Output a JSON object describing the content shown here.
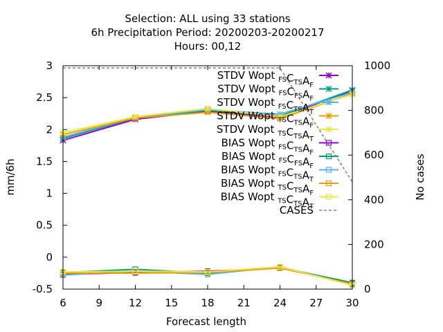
{
  "chart_data": {
    "type": "line",
    "title_lines": [
      "Selection: ALL using    33 stations",
      "6h Precipitation   Period: 20200203-20200217",
      "Hours:  00,12"
    ],
    "xlabel": "Forecast length",
    "ylabel": "mm/6h",
    "y2label": "No cases",
    "xlim": [
      6,
      30
    ],
    "ylim": [
      -0.5,
      3
    ],
    "y2lim": [
      0,
      1000
    ],
    "xticks": [
      "6",
      "9",
      "12",
      "15",
      "18",
      "21",
      "24",
      "27",
      "30"
    ],
    "yticks": [
      "-0.5",
      "0",
      "0.5",
      "1",
      "1.5",
      "2",
      "2.5",
      "3"
    ],
    "y2ticks": [
      "0",
      "200",
      "400",
      "600",
      "800",
      "1000"
    ],
    "grid": "none",
    "legend_position": "top-right",
    "x": [
      6,
      12,
      18,
      24,
      30
    ],
    "series": [
      {
        "name": "STDV Wopt FS CTS AF",
        "color": "#9400d3",
        "marker": "x-star",
        "values": [
          1.83,
          2.16,
          2.29,
          2.19,
          2.61
        ]
      },
      {
        "name": "STDV Wopt FS CFS AF",
        "color": "#009e73",
        "marker": "x-star",
        "values": [
          1.86,
          2.18,
          2.3,
          2.21,
          2.62
        ]
      },
      {
        "name": "STDV Wopt FS CTS AT",
        "color": "#56b4e9",
        "marker": "x-star",
        "values": [
          1.88,
          2.19,
          2.31,
          2.24,
          2.58
        ]
      },
      {
        "name": "STDV Wopt TS CTS AF",
        "color": "#e69f00",
        "marker": "x-star",
        "values": [
          1.92,
          2.18,
          2.27,
          2.17,
          2.56
        ]
      },
      {
        "name": "STDV Wopt TS CTS AT",
        "color": "#f0e442",
        "marker": "x-star",
        "values": [
          1.95,
          2.2,
          2.33,
          2.2,
          2.55
        ]
      },
      {
        "name": "BIAS Wopt FS CTS AF",
        "color": "#9400d3",
        "marker": "square",
        "values": [
          -0.27,
          -0.24,
          -0.22,
          -0.17,
          -0.41
        ]
      },
      {
        "name": "BIAS Wopt FS CFS AF",
        "color": "#009e73",
        "marker": "square",
        "values": [
          -0.24,
          -0.19,
          -0.25,
          -0.16,
          -0.4
        ]
      },
      {
        "name": "BIAS Wopt FS CTS AT",
        "color": "#56b4e9",
        "marker": "square",
        "values": [
          -0.28,
          -0.22,
          -0.27,
          -0.15,
          -0.43
        ]
      },
      {
        "name": "BIAS Wopt TS CTS AF",
        "color": "#e69f00",
        "marker": "square",
        "values": [
          -0.25,
          -0.25,
          -0.24,
          -0.17,
          -0.42
        ]
      },
      {
        "name": "BIAS Wopt TS CTS AT",
        "color": "#f0e442",
        "marker": "square",
        "values": [
          -0.23,
          -0.22,
          -0.23,
          -0.15,
          -0.44
        ]
      },
      {
        "name": "CASES",
        "color": "#808080",
        "marker": "none",
        "dashed": true,
        "axis": "y2",
        "values": [
          990,
          990,
          990,
          990,
          480
        ]
      }
    ],
    "legend": [
      {
        "prefix": "STDV Wopt ",
        "parts": [
          [
            "",
            ""
          ],
          [
            "",
            "FS"
          ],
          [
            "C",
            "TS"
          ],
          [
            "A",
            "F"
          ]
        ]
      },
      {
        "prefix": "STDV Wopt ",
        "parts": [
          [
            "",
            ""
          ],
          [
            "",
            "FS"
          ],
          [
            "C",
            "FS"
          ],
          [
            "A",
            "F"
          ]
        ]
      },
      {
        "prefix": "STDV Wopt ",
        "parts": [
          [
            "",
            ""
          ],
          [
            "",
            "FS"
          ],
          [
            "C",
            "TS"
          ],
          [
            "A",
            "T"
          ]
        ]
      },
      {
        "prefix": "STDV Wopt ",
        "parts": [
          [
            "",
            ""
          ],
          [
            "",
            "TS"
          ],
          [
            "C",
            "TS"
          ],
          [
            "A",
            "F"
          ]
        ]
      },
      {
        "prefix": "STDV Wopt ",
        "parts": [
          [
            "",
            ""
          ],
          [
            "",
            "TS"
          ],
          [
            "C",
            "TS"
          ],
          [
            "A",
            "T"
          ]
        ]
      },
      {
        "prefix": "BIAS Wopt ",
        "parts": [
          [
            "",
            ""
          ],
          [
            "",
            "FS"
          ],
          [
            "C",
            "TS"
          ],
          [
            "A",
            "F"
          ]
        ]
      },
      {
        "prefix": "BIAS Wopt ",
        "parts": [
          [
            "",
            ""
          ],
          [
            "",
            "FS"
          ],
          [
            "C",
            "FS"
          ],
          [
            "A",
            "F"
          ]
        ]
      },
      {
        "prefix": "BIAS Wopt ",
        "parts": [
          [
            "",
            ""
          ],
          [
            "",
            "FS"
          ],
          [
            "C",
            "TS"
          ],
          [
            "A",
            "T"
          ]
        ]
      },
      {
        "prefix": "BIAS Wopt ",
        "parts": [
          [
            "",
            ""
          ],
          [
            "",
            "TS"
          ],
          [
            "C",
            "TS"
          ],
          [
            "A",
            "F"
          ]
        ]
      },
      {
        "prefix": "BIAS Wopt ",
        "parts": [
          [
            "",
            ""
          ],
          [
            "",
            "TS"
          ],
          [
            "C",
            "TS"
          ],
          [
            "A",
            "T"
          ]
        ]
      },
      {
        "prefix": "CASES",
        "parts": []
      }
    ]
  }
}
